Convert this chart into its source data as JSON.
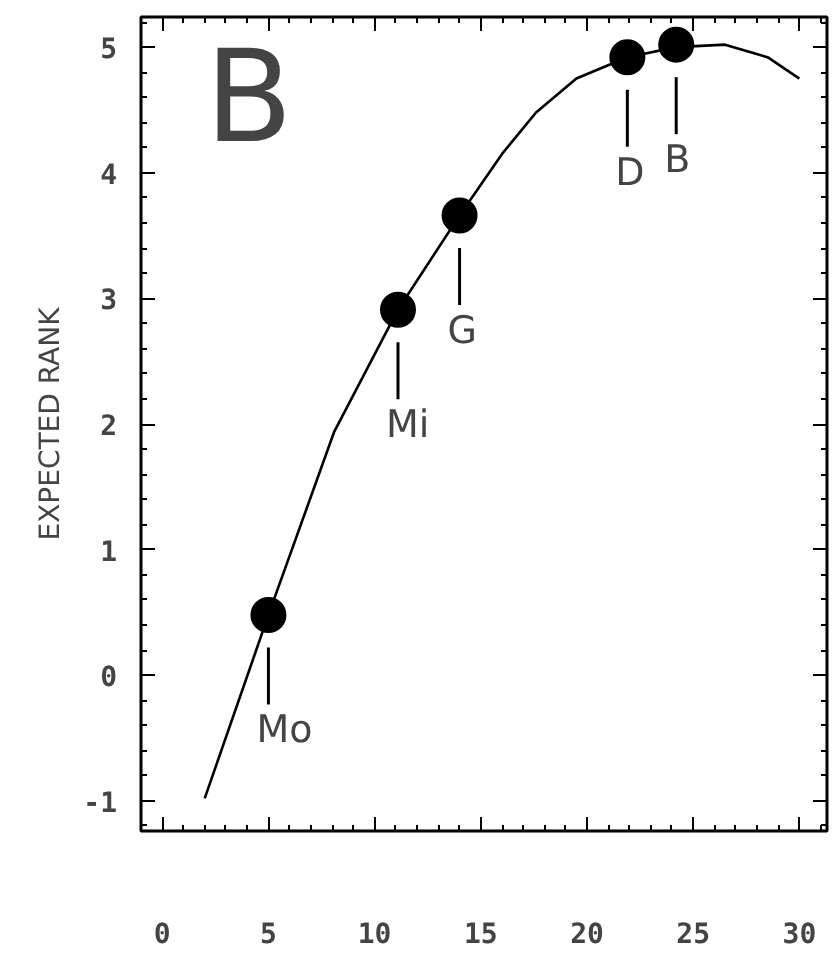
{
  "chart_data": {
    "type": "scatter",
    "ylabel": "EXPECTED RANK",
    "annotations": [
      "B",
      {
        "text": "Mo",
        "x": 5,
        "y": 0.48
      },
      {
        "text": "Mi",
        "x": 11.1,
        "y": 2.91
      },
      {
        "text": "G",
        "x": 14.0,
        "y": 3.66
      },
      {
        "text": "D",
        "x": 21.9,
        "y": 4.92
      },
      {
        "text": "B",
        "x": 24.2,
        "y": 5.02
      }
    ],
    "series": [
      {
        "type": "line",
        "color": "#000000",
        "x": [
          2.0,
          5,
          8.1,
          11.1,
          14.0,
          16.0,
          17.6,
          19.5,
          21.9,
          24.2,
          26.5,
          28.5,
          30
        ],
        "values": [
          -0.98,
          0.48,
          1.94,
          2.91,
          3.66,
          4.15,
          4.48,
          4.75,
          4.92,
          5.0,
          5.02,
          4.92,
          4.75
        ],
        "marker": "none"
      },
      {
        "color": "#000000",
        "x": [
          5,
          11.1,
          14.0,
          21.9,
          24.2
        ],
        "values": [
          0.48,
          2.91,
          3.66,
          4.92,
          5.02
        ]
      }
    ],
    "xlim": [
      -1,
      31.3
    ],
    "ylim": [
      -1.24,
      5.24
    ],
    "xticks": [
      0,
      5,
      10,
      15,
      20,
      25,
      30
    ],
    "yticks": [
      -1,
      0,
      1,
      2,
      3,
      4,
      5
    ],
    "grid": false,
    "marker": "circle"
  }
}
